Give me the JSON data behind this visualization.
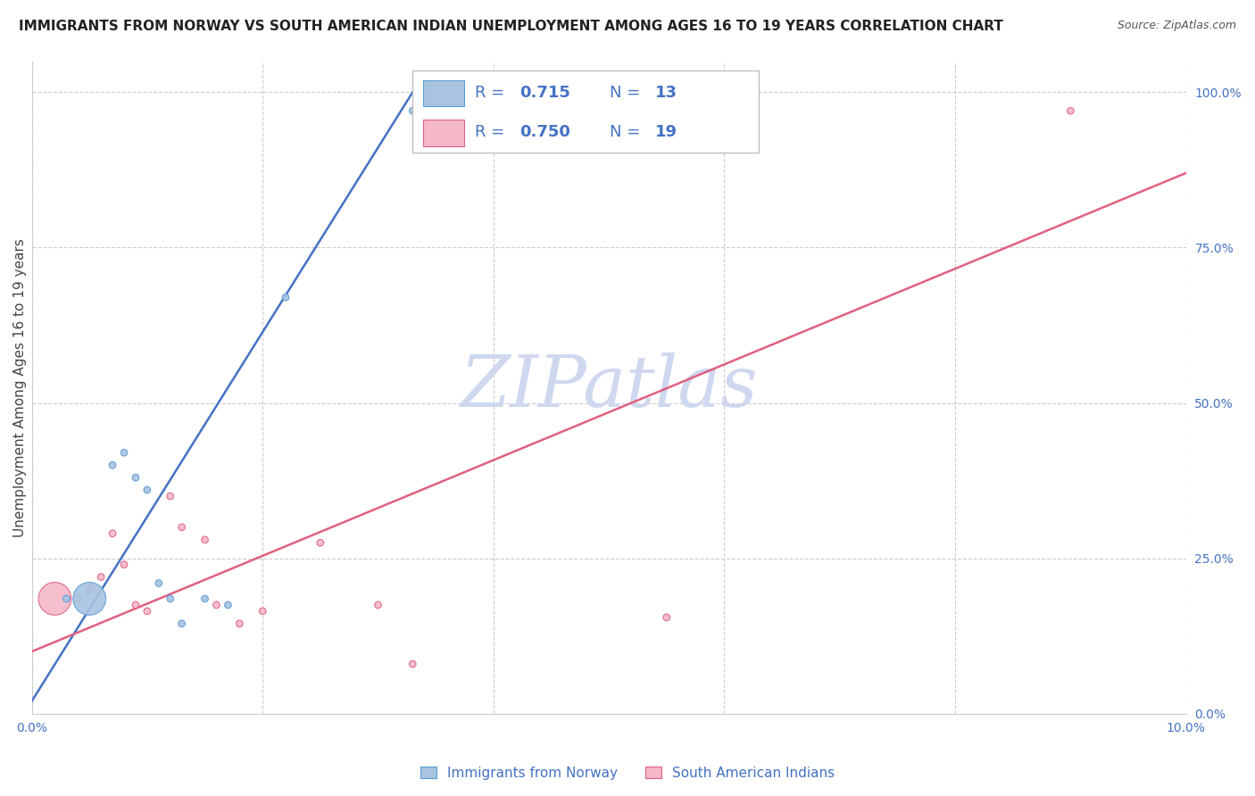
{
  "title": "IMMIGRANTS FROM NORWAY VS SOUTH AMERICAN INDIAN UNEMPLOYMENT AMONG AGES 16 TO 19 YEARS CORRELATION CHART",
  "source": "Source: ZipAtlas.com",
  "ylabel": "Unemployment Among Ages 16 to 19 years",
  "xmin": 0.0,
  "xmax": 0.1,
  "ymin": 0.0,
  "ymax": 1.05,
  "xticks": [
    0.0,
    0.02,
    0.04,
    0.06,
    0.08,
    0.1
  ],
  "xtick_labels": [
    "0.0%",
    "",
    "",
    "",
    "",
    "10.0%"
  ],
  "ytick_vals_right": [
    0.0,
    0.25,
    0.5,
    0.75,
    1.0
  ],
  "ytick_labels_right": [
    "0.0%",
    "25.0%",
    "50.0%",
    "75.0%",
    "100.0%"
  ],
  "norway_color": "#a8c4e0",
  "norway_edge_color": "#5b9bd5",
  "norway_line_color": "#4472c4",
  "sai_color": "#f4b8c8",
  "sai_edge_color": "#e06080",
  "sai_line_color": "#e06080",
  "norway_R": 0.715,
  "norway_N": 13,
  "sai_R": 0.75,
  "sai_N": 19,
  "watermark": "ZIPatlas",
  "watermark_color": "#d0d8f0",
  "legend_label_norway": "Immigrants from Norway",
  "legend_label_sai": "South American Indians",
  "norway_scatter_x": [
    0.003,
    0.005,
    0.007,
    0.008,
    0.009,
    0.01,
    0.011,
    0.012,
    0.013,
    0.015,
    0.017,
    0.022,
    0.033
  ],
  "norway_scatter_y": [
    0.185,
    0.185,
    0.4,
    0.42,
    0.38,
    0.36,
    0.21,
    0.185,
    0.145,
    0.185,
    0.175,
    0.67,
    0.97
  ],
  "norway_scatter_size": [
    30,
    700,
    30,
    30,
    30,
    30,
    30,
    30,
    30,
    30,
    30,
    30,
    30
  ],
  "sai_scatter_x": [
    0.002,
    0.004,
    0.005,
    0.006,
    0.007,
    0.008,
    0.009,
    0.01,
    0.012,
    0.013,
    0.015,
    0.016,
    0.018,
    0.02,
    0.025,
    0.03,
    0.033,
    0.055,
    0.09
  ],
  "sai_scatter_y": [
    0.185,
    0.185,
    0.2,
    0.22,
    0.29,
    0.24,
    0.175,
    0.165,
    0.35,
    0.3,
    0.28,
    0.175,
    0.145,
    0.165,
    0.275,
    0.175,
    0.08,
    0.155,
    0.97
  ],
  "sai_scatter_size": [
    700,
    30,
    30,
    30,
    30,
    30,
    30,
    30,
    30,
    30,
    30,
    30,
    30,
    30,
    30,
    30,
    30,
    30,
    30
  ],
  "norway_line_x": [
    0.0,
    0.033
  ],
  "norway_line_y": [
    0.02,
    1.0
  ],
  "sai_line_x": [
    0.0,
    0.1
  ],
  "sai_line_y": [
    0.1,
    0.87
  ],
  "grid_color": "#cccccc",
  "background_color": "#ffffff",
  "title_fontsize": 11,
  "axis_label_fontsize": 11,
  "tick_fontsize": 10,
  "legend_text_color": "#4472c4",
  "legend_fontsize": 13
}
